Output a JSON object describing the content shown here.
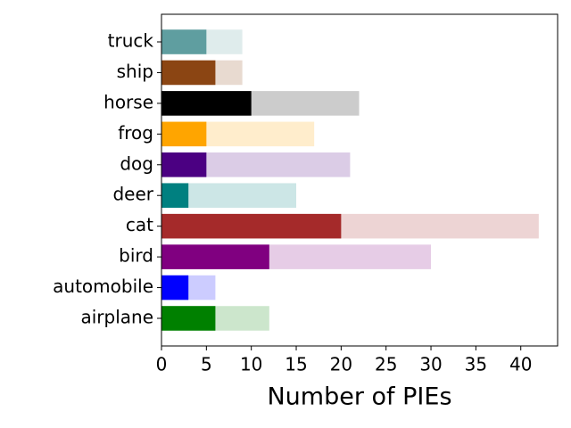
{
  "chart_data": {
    "type": "barh",
    "categories": [
      "airplane",
      "automobile",
      "bird",
      "cat",
      "deer",
      "dog",
      "frog",
      "horse",
      "ship",
      "truck"
    ],
    "series": [
      {
        "values": [
          12,
          6,
          30,
          42,
          15,
          21,
          17,
          22,
          9,
          9
        ],
        "alpha": 0.2,
        "colors": [
          "#008000",
          "#0000ff",
          "#800080",
          "#a52a2a",
          "#008080",
          "#4b0082",
          "#ffa500",
          "#000000",
          "#8b4513",
          "#5f9ea0"
        ]
      },
      {
        "values": [
          6,
          3,
          12,
          20,
          3,
          5,
          5,
          10,
          6,
          5
        ],
        "alpha": 1,
        "colors": [
          "#008000",
          "#0000ff",
          "#800080",
          "#a52a2a",
          "#008080",
          "#4b0082",
          "#ffa500",
          "#000000",
          "#8b4513",
          "#5f9ea0"
        ]
      }
    ],
    "xlabel": "Number of PIEs",
    "xlim": [
      0,
      44.1
    ],
    "xticks": [
      0,
      5,
      10,
      15,
      20,
      25,
      30,
      35,
      40
    ]
  }
}
